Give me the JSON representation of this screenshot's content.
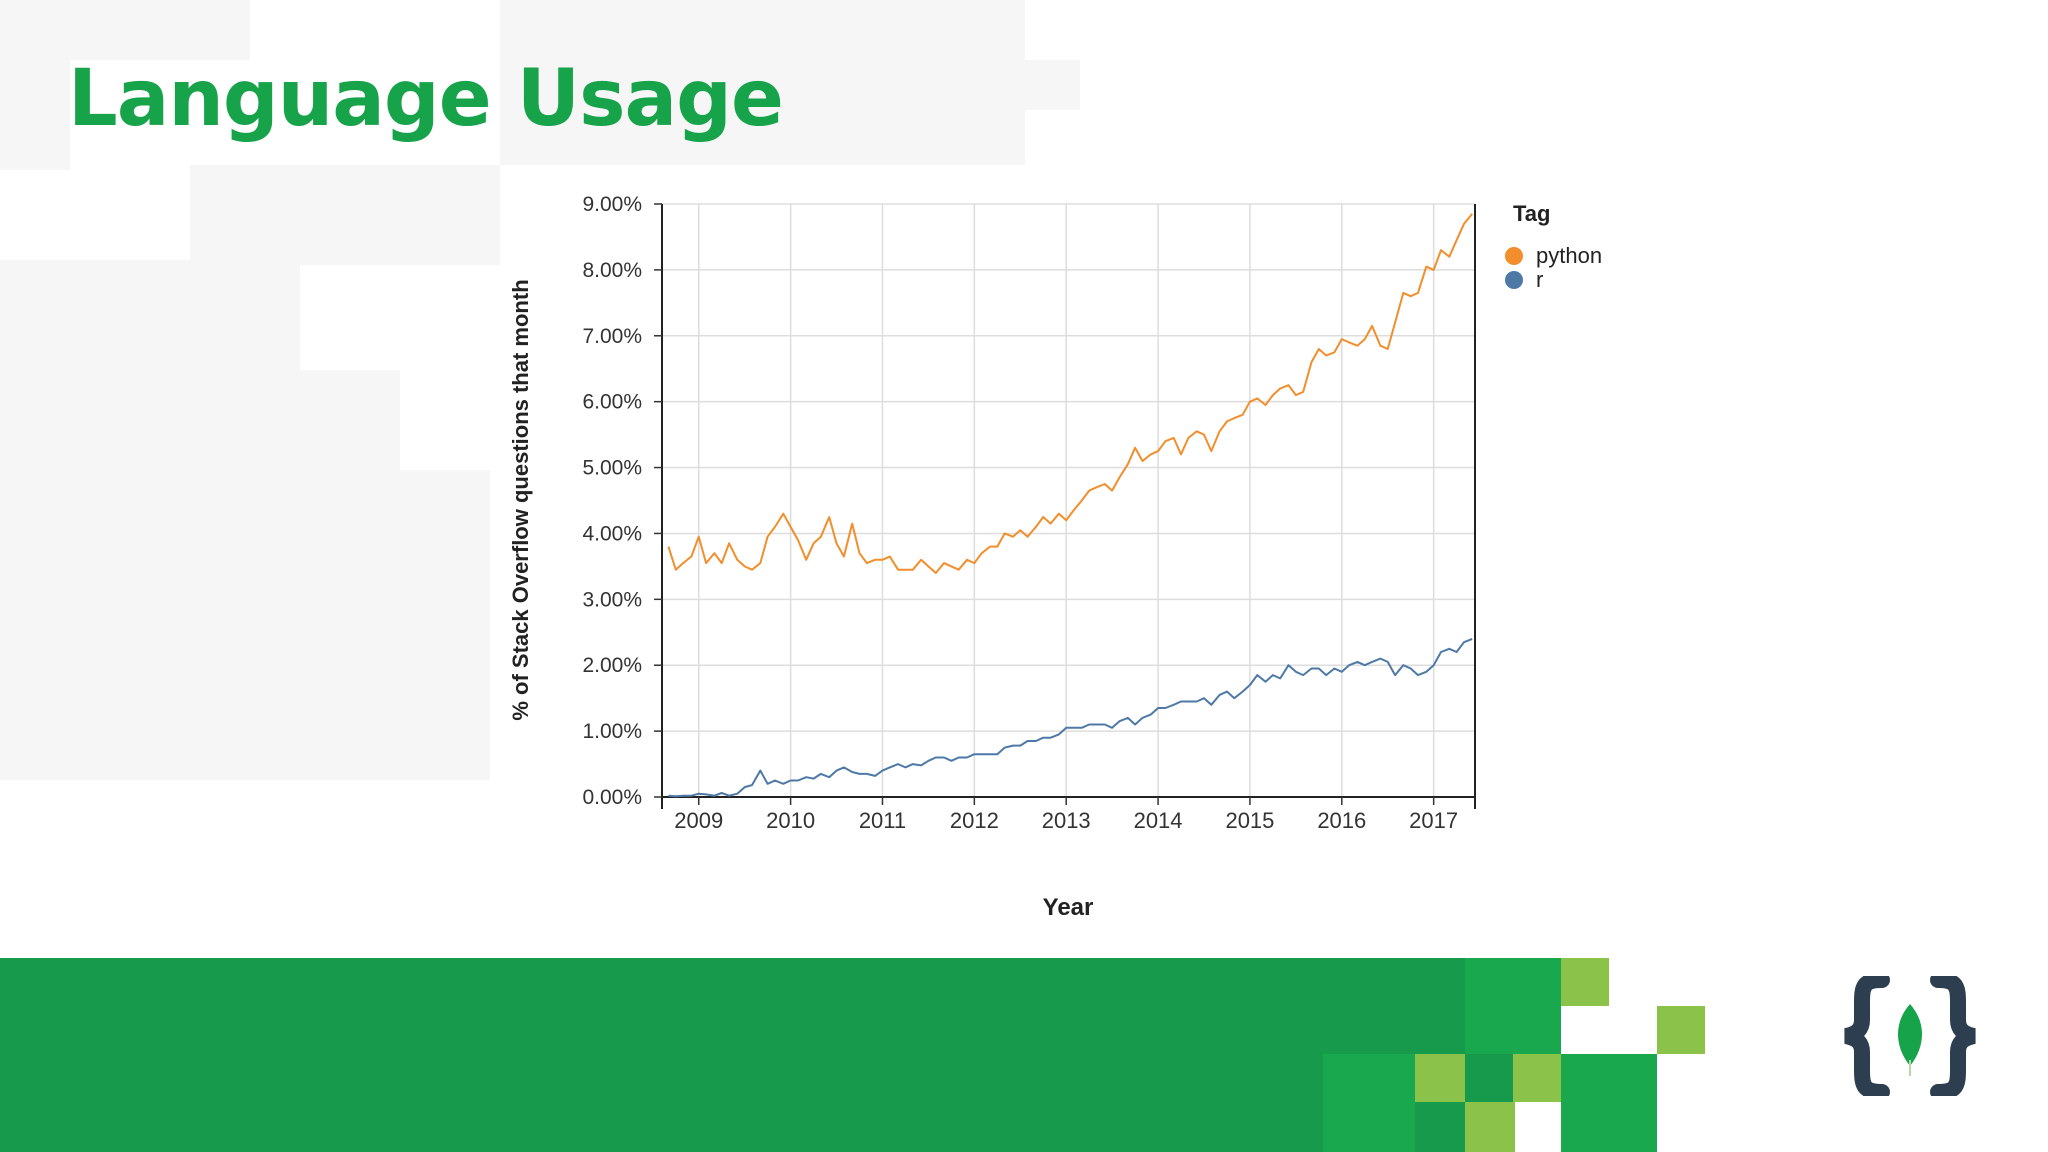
{
  "slide": {
    "title": "Language Usage"
  },
  "colors": {
    "title_green": "#16a34a",
    "footer_green": "#179a4b",
    "footer_light_green": "#8bc34a",
    "logo_dark": "#2c3e50",
    "logo_leaf": "#16a34a"
  },
  "icons": {
    "brand_logo": "curly-braces-leaf-icon"
  },
  "chart_data": {
    "type": "line",
    "title": "",
    "xlabel": "Year",
    "ylabel": "% of Stack Overflow questions that month",
    "xlim": [
      2008.6,
      2017.45
    ],
    "ylim": [
      0,
      9
    ],
    "x_ticks": [
      2009,
      2010,
      2011,
      2012,
      2013,
      2014,
      2015,
      2016,
      2017
    ],
    "x_tick_labels": [
      "2009",
      "2010",
      "2011",
      "2012",
      "2013",
      "2014",
      "2015",
      "2016",
      "2017"
    ],
    "y_ticks": [
      0,
      1,
      2,
      3,
      4,
      5,
      6,
      7,
      8,
      9
    ],
    "y_tick_labels": [
      "0.00%",
      "1.00%",
      "2.00%",
      "3.00%",
      "4.00%",
      "5.00%",
      "6.00%",
      "7.00%",
      "8.00%",
      "9.00%"
    ],
    "grid": true,
    "legend": {
      "title": "Tag",
      "position": "right"
    },
    "series": [
      {
        "name": "python",
        "color": "#f28e2b",
        "x": [
          2008.67,
          2008.75,
          2008.83,
          2008.92,
          2009.0,
          2009.08,
          2009.17,
          2009.25,
          2009.33,
          2009.42,
          2009.5,
          2009.58,
          2009.67,
          2009.75,
          2009.83,
          2009.92,
          2010.0,
          2010.08,
          2010.17,
          2010.25,
          2010.33,
          2010.42,
          2010.5,
          2010.58,
          2010.67,
          2010.75,
          2010.83,
          2010.92,
          2011.0,
          2011.08,
          2011.17,
          2011.25,
          2011.33,
          2011.42,
          2011.5,
          2011.58,
          2011.67,
          2011.75,
          2011.83,
          2011.92,
          2012.0,
          2012.08,
          2012.17,
          2012.25,
          2012.33,
          2012.42,
          2012.5,
          2012.58,
          2012.67,
          2012.75,
          2012.83,
          2012.92,
          2013.0,
          2013.08,
          2013.17,
          2013.25,
          2013.33,
          2013.42,
          2013.5,
          2013.58,
          2013.67,
          2013.75,
          2013.83,
          2013.92,
          2014.0,
          2014.08,
          2014.17,
          2014.25,
          2014.33,
          2014.42,
          2014.5,
          2014.58,
          2014.67,
          2014.75,
          2014.83,
          2014.92,
          2015.0,
          2015.08,
          2015.17,
          2015.25,
          2015.33,
          2015.42,
          2015.5,
          2015.58,
          2015.67,
          2015.75,
          2015.83,
          2015.92,
          2016.0,
          2016.08,
          2016.17,
          2016.25,
          2016.33,
          2016.42,
          2016.5,
          2016.58,
          2016.67,
          2016.75,
          2016.83,
          2016.92,
          2017.0,
          2017.08,
          2017.17,
          2017.25,
          2017.33,
          2017.42
        ],
        "y": [
          3.8,
          3.45,
          3.55,
          3.65,
          3.95,
          3.55,
          3.7,
          3.55,
          3.85,
          3.6,
          3.5,
          3.45,
          3.55,
          3.95,
          4.1,
          4.3,
          4.1,
          3.9,
          3.6,
          3.85,
          3.95,
          4.25,
          3.85,
          3.65,
          4.15,
          3.7,
          3.55,
          3.6,
          3.6,
          3.65,
          3.45,
          3.45,
          3.45,
          3.6,
          3.5,
          3.4,
          3.55,
          3.5,
          3.45,
          3.6,
          3.55,
          3.7,
          3.8,
          3.8,
          4.0,
          3.95,
          4.05,
          3.95,
          4.1,
          4.25,
          4.15,
          4.3,
          4.2,
          4.35,
          4.5,
          4.65,
          4.7,
          4.75,
          4.65,
          4.85,
          5.05,
          5.3,
          5.1,
          5.2,
          5.25,
          5.4,
          5.45,
          5.2,
          5.45,
          5.55,
          5.5,
          5.25,
          5.55,
          5.7,
          5.75,
          5.8,
          6.0,
          6.05,
          5.95,
          6.1,
          6.2,
          6.25,
          6.1,
          6.15,
          6.6,
          6.8,
          6.7,
          6.75,
          6.95,
          6.9,
          6.85,
          6.95,
          7.15,
          6.85,
          6.8,
          7.2,
          7.65,
          7.6,
          7.65,
          8.05,
          8.0,
          8.3,
          8.2,
          8.45,
          8.7,
          8.85
        ]
      },
      {
        "name": "r",
        "color": "#4e79a7",
        "x": [
          2008.67,
          2008.75,
          2008.83,
          2008.92,
          2009.0,
          2009.08,
          2009.17,
          2009.25,
          2009.33,
          2009.42,
          2009.5,
          2009.58,
          2009.67,
          2009.75,
          2009.83,
          2009.92,
          2010.0,
          2010.08,
          2010.17,
          2010.25,
          2010.33,
          2010.42,
          2010.5,
          2010.58,
          2010.67,
          2010.75,
          2010.83,
          2010.92,
          2011.0,
          2011.08,
          2011.17,
          2011.25,
          2011.33,
          2011.42,
          2011.5,
          2011.58,
          2011.67,
          2011.75,
          2011.83,
          2011.92,
          2012.0,
          2012.08,
          2012.17,
          2012.25,
          2012.33,
          2012.42,
          2012.5,
          2012.58,
          2012.67,
          2012.75,
          2012.83,
          2012.92,
          2013.0,
          2013.08,
          2013.17,
          2013.25,
          2013.33,
          2013.42,
          2013.5,
          2013.58,
          2013.67,
          2013.75,
          2013.83,
          2013.92,
          2014.0,
          2014.08,
          2014.17,
          2014.25,
          2014.33,
          2014.42,
          2014.5,
          2014.58,
          2014.67,
          2014.75,
          2014.83,
          2014.92,
          2015.0,
          2015.08,
          2015.17,
          2015.25,
          2015.33,
          2015.42,
          2015.5,
          2015.58,
          2015.67,
          2015.75,
          2015.83,
          2015.92,
          2016.0,
          2016.08,
          2016.17,
          2016.25,
          2016.33,
          2016.42,
          2016.5,
          2016.58,
          2016.67,
          2016.75,
          2016.83,
          2016.92,
          2017.0,
          2017.08,
          2017.17,
          2017.25,
          2017.33,
          2017.42
        ],
        "y": [
          0.02,
          0.01,
          0.02,
          0.02,
          0.05,
          0.04,
          0.02,
          0.06,
          0.02,
          0.05,
          0.15,
          0.18,
          0.4,
          0.2,
          0.25,
          0.2,
          0.25,
          0.25,
          0.3,
          0.28,
          0.35,
          0.3,
          0.4,
          0.45,
          0.38,
          0.35,
          0.35,
          0.32,
          0.4,
          0.45,
          0.5,
          0.45,
          0.5,
          0.48,
          0.55,
          0.6,
          0.6,
          0.55,
          0.6,
          0.6,
          0.65,
          0.65,
          0.65,
          0.65,
          0.75,
          0.78,
          0.78,
          0.85,
          0.85,
          0.9,
          0.9,
          0.95,
          1.05,
          1.05,
          1.05,
          1.1,
          1.1,
          1.1,
          1.05,
          1.15,
          1.2,
          1.1,
          1.2,
          1.25,
          1.35,
          1.35,
          1.4,
          1.45,
          1.45,
          1.45,
          1.5,
          1.4,
          1.55,
          1.6,
          1.5,
          1.6,
          1.7,
          1.85,
          1.75,
          1.85,
          1.8,
          2.0,
          1.9,
          1.85,
          1.95,
          1.95,
          1.85,
          1.95,
          1.9,
          2.0,
          2.05,
          2.0,
          2.05,
          2.1,
          2.05,
          1.85,
          2.0,
          1.95,
          1.85,
          1.9,
          2.0,
          2.2,
          2.25,
          2.2,
          2.35,
          2.4
        ]
      }
    ]
  }
}
